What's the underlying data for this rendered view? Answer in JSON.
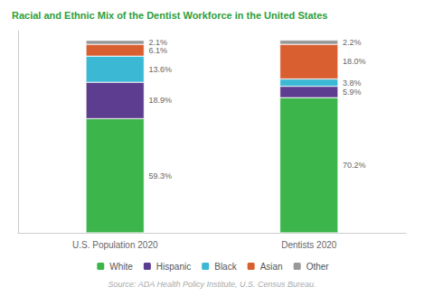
{
  "chart_data": {
    "type": "bar",
    "title": "Racial and Ethnic Mix of the Dentist Workforce in the United States",
    "annotations": [
      "Source: ADA Health Policy Institute, U.S. Census Bureau."
    ],
    "categories": [
      "U.S. Population 2020",
      "Dentists 2020"
    ],
    "stacked": true,
    "data_labels": true,
    "legend": "bottom",
    "grid": false,
    "tick_labels": "x",
    "ylim": [
      0,
      105
    ],
    "series": [
      {
        "name": "White",
        "color": "#3cb54a",
        "values": [
          59.3,
          70.2
        ],
        "value_labels": [
          "59.3%",
          "70.2%"
        ]
      },
      {
        "name": "Hispanic",
        "color": "#5c3d8f",
        "values": [
          18.9,
          5.9
        ],
        "value_labels": [
          "18.9%",
          "5.9%"
        ]
      },
      {
        "name": "Black",
        "color": "#3ab8d4",
        "values": [
          13.6,
          3.8
        ],
        "value_labels": [
          "13.6%",
          "3.8%"
        ]
      },
      {
        "name": "Asian",
        "color": "#d95f30",
        "values": [
          6.1,
          18.0
        ],
        "value_labels": [
          "6.1%",
          "18.0%"
        ]
      },
      {
        "name": "Other",
        "color": "#999999",
        "values": [
          2.1,
          2.2
        ],
        "value_labels": [
          "2.1%",
          "2.2%"
        ]
      }
    ]
  }
}
